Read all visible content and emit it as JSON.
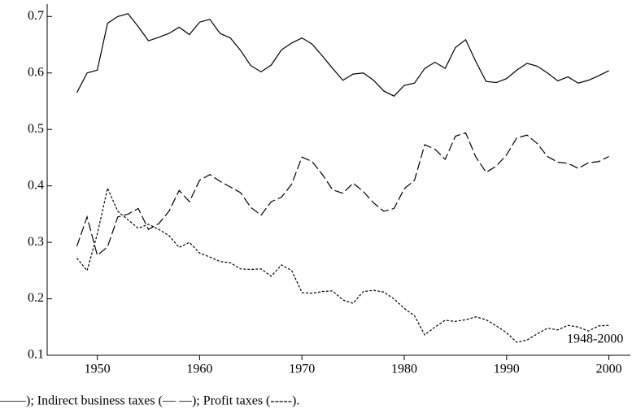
{
  "chart_data": {
    "type": "line",
    "x": [
      1948,
      1949,
      1950,
      1951,
      1952,
      1953,
      1954,
      1955,
      1956,
      1957,
      1958,
      1959,
      1960,
      1961,
      1962,
      1963,
      1964,
      1965,
      1966,
      1967,
      1968,
      1969,
      1970,
      1971,
      1972,
      1973,
      1974,
      1975,
      1976,
      1977,
      1978,
      1979,
      1980,
      1981,
      1982,
      1983,
      1984,
      1985,
      1986,
      1987,
      1988,
      1989,
      1990,
      1991,
      1992,
      1993,
      1994,
      1995,
      1996,
      1997,
      1998,
      1999,
      2000
    ],
    "series": [
      {
        "color": "#000000",
        "dash": "solid",
        "values": [
          0.565,
          0.6,
          0.605,
          0.688,
          0.7,
          0.705,
          0.682,
          0.657,
          0.663,
          0.67,
          0.681,
          0.668,
          0.69,
          0.695,
          0.67,
          0.662,
          0.64,
          0.613,
          0.602,
          0.614,
          0.641,
          0.653,
          0.662,
          0.651,
          0.63,
          0.608,
          0.587,
          0.598,
          0.6,
          0.587,
          0.568,
          0.559,
          0.578,
          0.582,
          0.608,
          0.619,
          0.608,
          0.645,
          0.659,
          0.62,
          0.585,
          0.583,
          0.59,
          0.605,
          0.617,
          0.612,
          0.6,
          0.586,
          0.593,
          0.582,
          0.587,
          0.595,
          0.604
        ]
      },
      {
        "color": "#000000",
        "dash": "dashed",
        "values": [
          0.293,
          0.345,
          0.277,
          0.292,
          0.345,
          0.35,
          0.36,
          0.323,
          0.333,
          0.355,
          0.392,
          0.372,
          0.41,
          0.42,
          0.408,
          0.398,
          0.388,
          0.362,
          0.348,
          0.372,
          0.38,
          0.403,
          0.451,
          0.443,
          0.42,
          0.393,
          0.387,
          0.405,
          0.39,
          0.37,
          0.355,
          0.36,
          0.395,
          0.41,
          0.473,
          0.465,
          0.447,
          0.488,
          0.494,
          0.451,
          0.424,
          0.435,
          0.455,
          0.485,
          0.49,
          0.475,
          0.452,
          0.442,
          0.44,
          0.431,
          0.441,
          0.443,
          0.452
        ]
      },
      {
        "color": "#000000",
        "dash": "dotted",
        "values": [
          0.272,
          0.25,
          0.315,
          0.396,
          0.355,
          0.34,
          0.325,
          0.332,
          0.323,
          0.312,
          0.291,
          0.3,
          0.281,
          0.274,
          0.266,
          0.264,
          0.253,
          0.252,
          0.253,
          0.24,
          0.26,
          0.25,
          0.211,
          0.21,
          0.213,
          0.214,
          0.198,
          0.192,
          0.213,
          0.215,
          0.212,
          0.2,
          0.183,
          0.17,
          0.136,
          0.15,
          0.162,
          0.16,
          0.163,
          0.168,
          0.163,
          0.152,
          0.14,
          0.123,
          0.127,
          0.138,
          0.148,
          0.145,
          0.153,
          0.15,
          0.143,
          0.152,
          0.153
        ]
      }
    ],
    "xlim": [
      1945.1,
      2002.1
    ],
    "xticks": [
      1950,
      1960,
      1970,
      1980,
      1990,
      2000
    ],
    "ylim": [
      0.1,
      0.722
    ],
    "yticks": [
      0.1,
      0.2,
      0.3,
      0.4,
      0.5,
      0.6,
      0.7
    ],
    "annotation": "1948-2000",
    "caption": "——); Indirect business taxes (— —); Profit taxes (-----)."
  }
}
